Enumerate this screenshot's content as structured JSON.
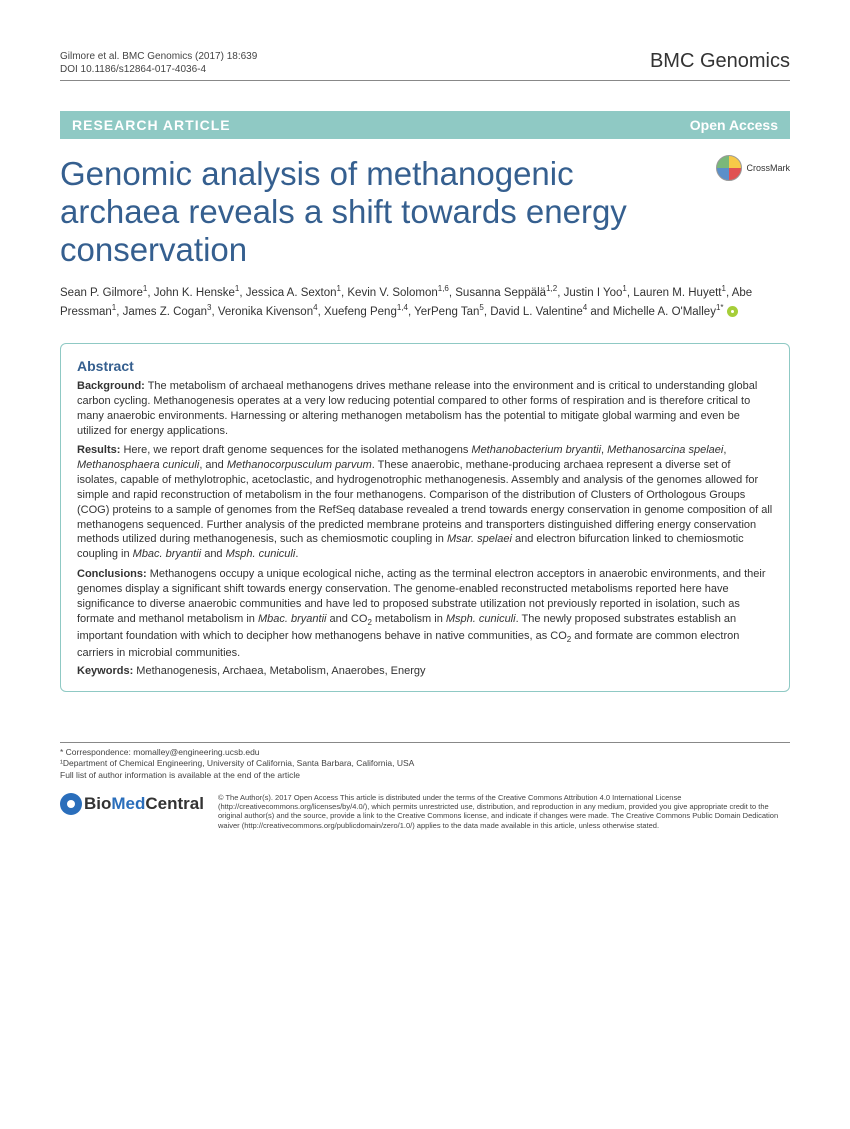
{
  "header": {
    "citation_line1": "Gilmore et al. BMC Genomics (2017) 18:639",
    "citation_line2": "DOI 10.1186/s12864-017-4036-4",
    "journal": "BMC Genomics"
  },
  "banner": {
    "type": "RESEARCH ARTICLE",
    "access": "Open Access"
  },
  "crossmark": "CrossMark",
  "title": "Genomic analysis of methanogenic archaea reveals a shift towards energy conservation",
  "authors_html": "Sean P. Gilmore<sup>1</sup>, John K. Henske<sup>1</sup>, Jessica A. Sexton<sup>1</sup>, Kevin V. Solomon<sup>1,6</sup>, Susanna Seppälä<sup>1,2</sup>, Justin I Yoo<sup>1</sup>, Lauren M. Huyett<sup>1</sup>, Abe Pressman<sup>1</sup>, James Z. Cogan<sup>3</sup>, Veronika Kivenson<sup>4</sup>, Xuefeng Peng<sup>1,4</sup>, YerPeng Tan<sup>5</sup>, David L. Valentine<sup>4</sup> and Michelle A. O'Malley<sup>1*</sup>",
  "abstract": {
    "heading": "Abstract",
    "background_label": "Background:",
    "background": " The metabolism of archaeal methanogens drives methane release into the environment and is critical to understanding global carbon cycling. Methanogenesis operates at a very low reducing potential compared to other forms of respiration and is therefore critical to many anaerobic environments. Harnessing or altering methanogen metabolism has the potential to mitigate global warming and even be utilized for energy applications.",
    "results_label": "Results:",
    "results_html": " Here, we report draft genome sequences for the isolated methanogens <em>Methanobacterium bryantii</em>, <em>Methanosarcina spelaei</em>, <em>Methanosphaera cuniculi</em>, and <em>Methanocorpusculum parvum</em>. These anaerobic, methane-producing archaea represent a diverse set of isolates, capable of methylotrophic, acetoclastic, and hydrogenotrophic methanogenesis. Assembly and analysis of the genomes allowed for simple and rapid reconstruction of metabolism in the four methanogens. Comparison of the distribution of Clusters of Orthologous Groups (COG) proteins to a sample of genomes from the RefSeq database revealed a trend towards energy conservation in genome composition of all methanogens sequenced. Further analysis of the predicted membrane proteins and transporters distinguished differing energy conservation methods utilized during methanogenesis, such as chemiosmotic coupling in <em>Msar. spelaei</em> and electron bifurcation linked to chemiosmotic coupling in <em>Mbac. bryantii</em> and <em>Msph. cuniculi</em>.",
    "conclusions_label": "Conclusions:",
    "conclusions_html": " Methanogens occupy a unique ecological niche, acting as the terminal electron acceptors in anaerobic environments, and their genomes display a significant shift towards energy conservation. The genome-enabled reconstructed metabolisms reported here have significance to diverse anaerobic communities and have led to proposed substrate utilization not previously reported in isolation, such as formate and methanol metabolism in <em>Mbac. bryantii</em> and CO<sub>2</sub> metabolism in <em>Msph. cuniculi</em>. The newly proposed substrates establish an important foundation with which to decipher how methanogens behave in native communities, as CO<sub>2</sub> and formate are common electron carriers in microbial communities.",
    "keywords_label": "Keywords:",
    "keywords": " Methanogenesis, Archaea, Metabolism, Anaerobes, Energy"
  },
  "footer": {
    "correspondence_line1": "* Correspondence: momalley@engineering.ucsb.edu",
    "correspondence_line2": "¹Department of Chemical Engineering, University of California, Santa Barbara, California, USA",
    "correspondence_line3": "Full list of author information is available at the end of the article",
    "bmc_bio": "Bio",
    "bmc_med": "Med",
    "bmc_central": " Central",
    "license": "© The Author(s). 2017 Open Access This article is distributed under the terms of the Creative Commons Attribution 4.0 International License (http://creativecommons.org/licenses/by/4.0/), which permits unrestricted use, distribution, and reproduction in any medium, provided you give appropriate credit to the original author(s) and the source, provide a link to the Creative Commons license, and indicate if changes were made. The Creative Commons Public Domain Dedication waiver (http://creativecommons.org/publicdomain/zero/1.0/) applies to the data made available in this article, unless otherwise stated."
  }
}
